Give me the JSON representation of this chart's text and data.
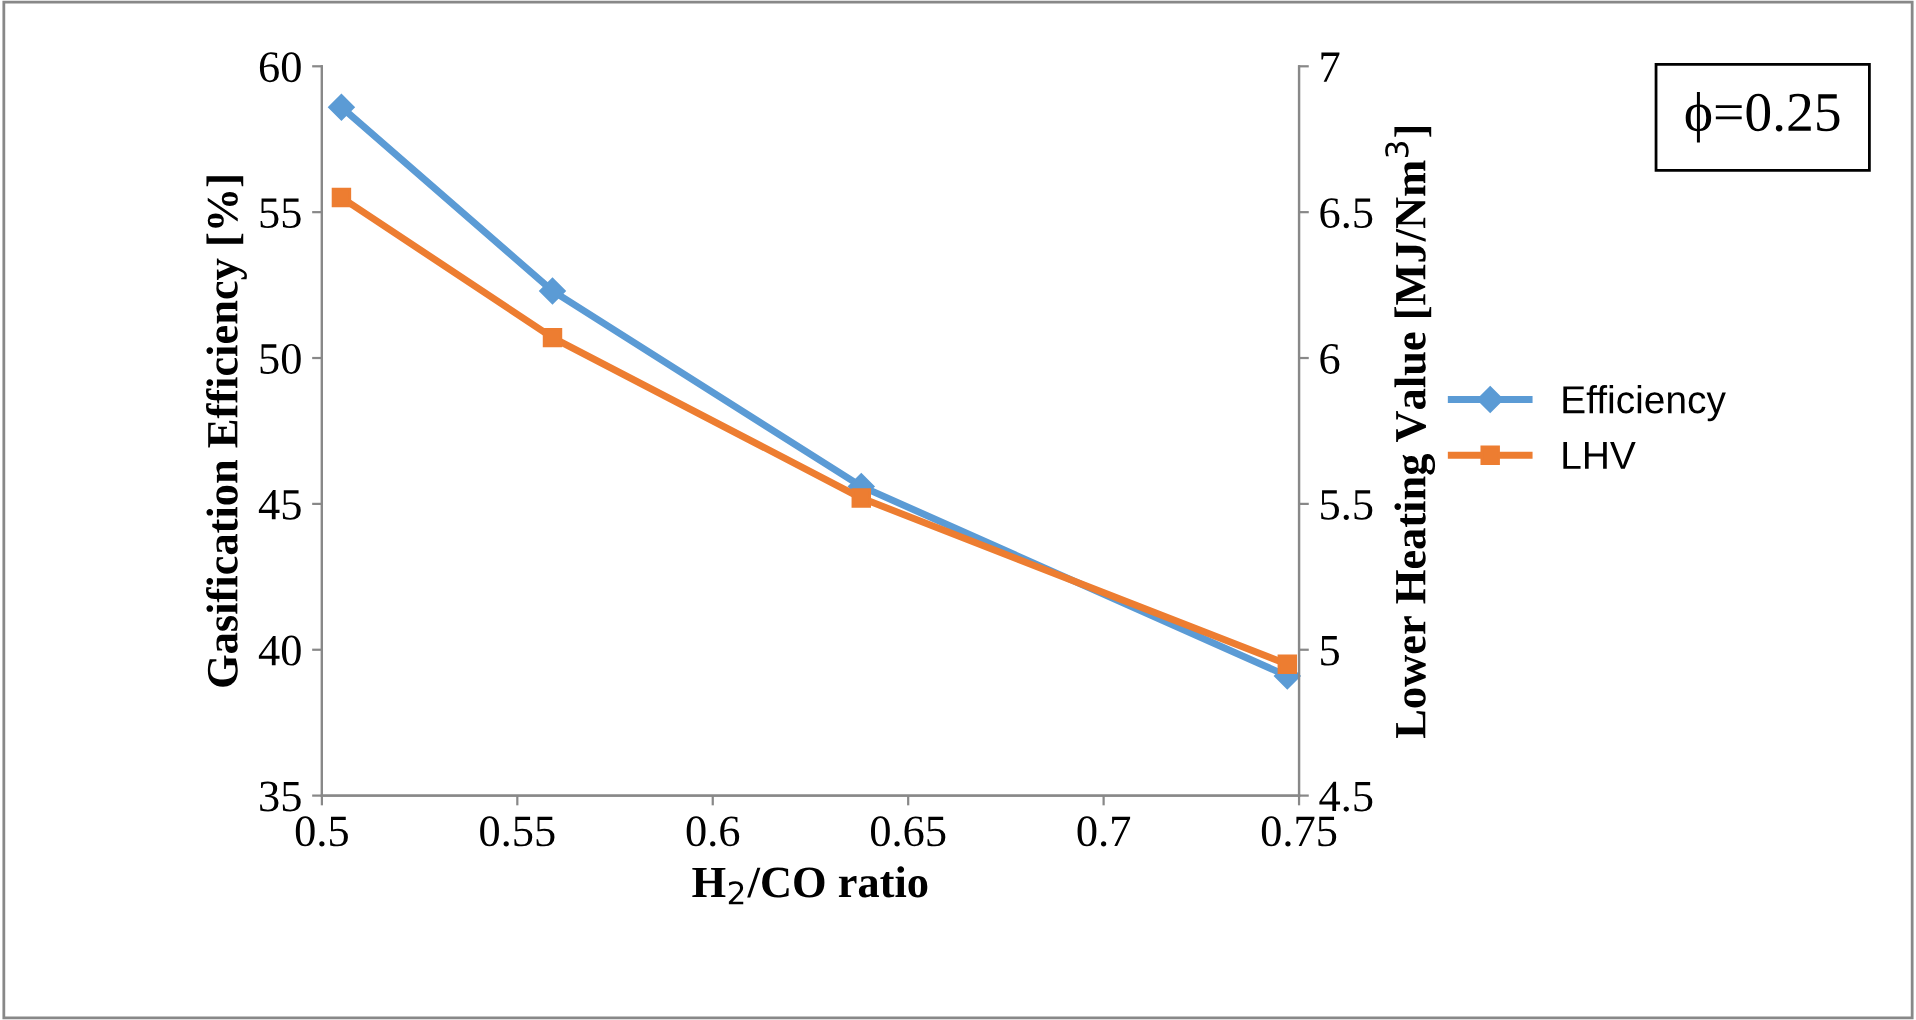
{
  "chart_data": {
    "type": "line",
    "xlabel": "H$_{2}$/CO ratio",
    "ylabel": "Gasification Efficiency [%]",
    "y2label": "Lower Heating Value [MJ/Nm$^{3}$]",
    "annotations": [
      "ϕ=0.25"
    ],
    "x": [
      0.505,
      0.559,
      0.638,
      0.747
    ],
    "series": [
      {
        "name": "Efficiency",
        "color": "#5b9bd5",
        "marker": "diamond",
        "values": [
          58.6,
          52.3,
          45.6,
          39.1
        ]
      },
      {
        "name": "LHV",
        "color": "#ed7d31",
        "marker": "square",
        "axis": "y2",
        "values": [
          6.55,
          6.07,
          5.52,
          4.95
        ]
      }
    ],
    "xlim": [
      0.5,
      0.75
    ],
    "xticks": [
      0.5,
      0.55,
      0.6,
      0.65,
      0.7,
      0.75
    ],
    "ylim": [
      35,
      60
    ],
    "yticks": [
      35,
      40,
      45,
      50,
      55,
      60
    ],
    "y2lim": [
      4.5,
      7
    ],
    "y2ticks": [
      4.5,
      5,
      5.5,
      6,
      6.5,
      7
    ],
    "grid": false,
    "legend": "right",
    "line_style": "solid"
  }
}
